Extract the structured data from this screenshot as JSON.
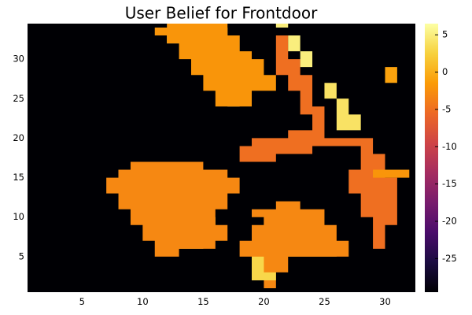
{
  "chart_data": {
    "type": "heatmap",
    "title": "User Belief for Frontdoor",
    "xlabel": "",
    "ylabel": "",
    "x_range": [
      0.5,
      32.5
    ],
    "y_range": [
      0.5,
      34.5
    ],
    "x_ticks": [
      5,
      10,
      15,
      20,
      25,
      30
    ],
    "y_ticks": [
      5,
      10,
      15,
      20,
      25,
      30
    ],
    "colorbar": {
      "min": -29.5,
      "max": 6.5,
      "ticks": [
        5,
        0,
        -5,
        -10,
        -15,
        -20,
        -25
      ],
      "colormap": "inferno",
      "colormap_stops": [
        "#000004",
        "#1b0c41",
        "#4a0c6b",
        "#781c6d",
        "#a52c60",
        "#cf4446",
        "#ed6925",
        "#fb9b06",
        "#f7d13d",
        "#fcffa4"
      ]
    },
    "grid": false,
    "background_value": -29.5,
    "regions": [
      {
        "name": "upper-left blob",
        "value": 5,
        "rings": [
          [
            [
              12,
              33
            ],
            [
              12,
              34
            ],
            [
              17,
              34
            ],
            [
              17,
              33
            ],
            [
              18,
              33
            ],
            [
              18,
              31
            ],
            [
              17,
              31
            ],
            [
              17,
              29
            ],
            [
              16,
              29
            ],
            [
              16,
              27
            ],
            [
              17,
              27
            ],
            [
              17,
              25
            ],
            [
              18,
              25
            ],
            [
              18,
              24
            ],
            [
              17,
              24
            ],
            [
              17,
              26
            ],
            [
              16,
              26
            ],
            [
              16,
              28
            ],
            [
              15,
              28
            ],
            [
              15,
              30
            ],
            [
              14,
              30
            ],
            [
              14,
              32
            ],
            [
              12,
              32
            ]
          ]
        ]
      },
      {
        "name": "upper-left blob warm",
        "value": -2,
        "rings": [
          [
            [
              11,
              33
            ],
            [
              11,
              34
            ],
            [
              12,
              34
            ],
            [
              12,
              32
            ],
            [
              13,
              32
            ],
            [
              13,
              30
            ],
            [
              14,
              30
            ],
            [
              14,
              28
            ],
            [
              15,
              28
            ],
            [
              15,
              26
            ],
            [
              16,
              26
            ],
            [
              16,
              24
            ],
            [
              19,
              24
            ],
            [
              19,
              26
            ],
            [
              21,
              26
            ],
            [
              21,
              28
            ],
            [
              20,
              28
            ],
            [
              20,
              30
            ],
            [
              19,
              30
            ],
            [
              19,
              31
            ],
            [
              18,
              31
            ],
            [
              18,
              33
            ],
            [
              17,
              33
            ],
            [
              17,
              35
            ],
            [
              12,
              35
            ],
            [
              12,
              33
            ]
          ]
        ]
      },
      {
        "name": "lower-left blob",
        "value": 4,
        "rings": [
          [
            [
              8,
              16
            ],
            [
              15,
              16
            ],
            [
              15,
              15
            ],
            [
              17,
              15
            ],
            [
              17,
              14
            ],
            [
              16,
              14
            ],
            [
              16,
              12
            ],
            [
              15,
              12
            ],
            [
              15,
              10
            ],
            [
              16,
              10
            ],
            [
              16,
              8
            ],
            [
              15,
              8
            ],
            [
              15,
              6
            ],
            [
              13,
              6
            ],
            [
              13,
              8
            ],
            [
              12,
              8
            ],
            [
              12,
              10
            ],
            [
              11,
              10
            ],
            [
              11,
              12
            ],
            [
              9,
              12
            ],
            [
              9,
              14
            ],
            [
              8,
              14
            ]
          ]
        ]
      },
      {
        "name": "lower-left blob warm",
        "value": -3,
        "rings": [
          [
            [
              8,
              15
            ],
            [
              8,
              16
            ],
            [
              9,
              16
            ],
            [
              9,
              17
            ],
            [
              15,
              17
            ],
            [
              15,
              16
            ],
            [
              17,
              16
            ],
            [
              17,
              15
            ],
            [
              18,
              15
            ],
            [
              18,
              13
            ],
            [
              17,
              13
            ],
            [
              17,
              11
            ],
            [
              16,
              11
            ],
            [
              16,
              9
            ],
            [
              17,
              9
            ],
            [
              17,
              7
            ],
            [
              16,
              7
            ],
            [
              16,
              6
            ],
            [
              13,
              6
            ],
            [
              13,
              5
            ],
            [
              11,
              5
            ],
            [
              11,
              7
            ],
            [
              10,
              7
            ],
            [
              10,
              9
            ],
            [
              9,
              9
            ],
            [
              9,
              11
            ],
            [
              8,
              11
            ],
            [
              8,
              13
            ],
            [
              7,
              13
            ],
            [
              7,
              15
            ]
          ]
        ]
      },
      {
        "name": "lower-right blob",
        "value": 3,
        "rings": [
          [
            [
              20,
              10
            ],
            [
              24,
              10
            ],
            [
              24,
              9
            ],
            [
              25,
              9
            ],
            [
              25,
              7
            ],
            [
              26,
              7
            ],
            [
              26,
              5
            ],
            [
              22,
              5
            ],
            [
              22,
              6
            ],
            [
              21,
              6
            ],
            [
              21,
              8
            ],
            [
              20,
              8
            ]
          ]
        ]
      },
      {
        "name": "lower-right blob warm",
        "value": -3,
        "rings": [
          [
            [
              19,
              11
            ],
            [
              19,
              10
            ],
            [
              20,
              10
            ],
            [
              20,
              9
            ],
            [
              19,
              9
            ],
            [
              19,
              7
            ],
            [
              18,
              7
            ],
            [
              18,
              5
            ],
            [
              19,
              5
            ],
            [
              19,
              2
            ],
            [
              20,
              2
            ],
            [
              20,
              1
            ],
            [
              21,
              1
            ],
            [
              21,
              3
            ],
            [
              22,
              3
            ],
            [
              22,
              5
            ],
            [
              27,
              5
            ],
            [
              27,
              7
            ],
            [
              26,
              7
            ],
            [
              26,
              9
            ],
            [
              25,
              9
            ],
            [
              25,
              11
            ],
            [
              23,
              11
            ],
            [
              23,
              12
            ],
            [
              21,
              12
            ],
            [
              21,
              11
            ]
          ]
        ]
      },
      {
        "name": "right arm",
        "value": 4,
        "rings": [
          [
            [
              25,
              25
            ],
            [
              26,
              25
            ],
            [
              26,
              21
            ],
            [
              28,
              21
            ],
            [
              28,
              23
            ],
            [
              27,
              23
            ],
            [
              27,
              25
            ],
            [
              26,
              25
            ],
            [
              26,
              27
            ],
            [
              25,
              27
            ]
          ]
        ]
      },
      {
        "name": "right arm warm",
        "value": -5,
        "rings": [
          [
            [
              24,
              28
            ],
            [
              24,
              24
            ],
            [
              25,
              24
            ],
            [
              25,
              20
            ],
            [
              29,
              20
            ],
            [
              29,
              18
            ],
            [
              30,
              18
            ],
            [
              30,
              15
            ],
            [
              31,
              15
            ],
            [
              31,
              9
            ],
            [
              30,
              9
            ],
            [
              30,
              6
            ],
            [
              29,
              6
            ],
            [
              29,
              10
            ],
            [
              28,
              10
            ],
            [
              28,
              13
            ],
            [
              27,
              13
            ],
            [
              27,
              16
            ],
            [
              28,
              16
            ],
            [
              28,
              19
            ],
            [
              24,
              19
            ],
            [
              24,
              18
            ],
            [
              21,
              18
            ],
            [
              21,
              17
            ],
            [
              18,
              17
            ],
            [
              18,
              19
            ],
            [
              19,
              19
            ],
            [
              19,
              20
            ],
            [
              22,
              20
            ],
            [
              22,
              21
            ],
            [
              24,
              21
            ],
            [
              24,
              23
            ],
            [
              23,
              23
            ],
            [
              23,
              26
            ],
            [
              22,
              26
            ],
            [
              22,
              28
            ],
            [
              21,
              28
            ],
            [
              21,
              33
            ],
            [
              22,
              33
            ],
            [
              22,
              30
            ],
            [
              23,
              30
            ],
            [
              23,
              28
            ]
          ]
        ]
      },
      {
        "name": "right arm top",
        "value": 5,
        "rings": [
          [
            [
              21,
              34
            ],
            [
              22,
              34
            ],
            [
              22,
              31
            ],
            [
              23,
              31
            ],
            [
              23,
              29
            ],
            [
              24,
              29
            ],
            [
              24,
              31
            ],
            [
              23,
              31
            ],
            [
              23,
              33
            ],
            [
              22,
              33
            ],
            [
              22,
              35
            ],
            [
              21,
              35
            ]
          ]
        ]
      },
      {
        "name": "far right spot",
        "value": -1,
        "rings": [
          [
            [
              30,
              27
            ],
            [
              30,
              29
            ],
            [
              31,
              29
            ],
            [
              31,
              27
            ]
          ]
        ]
      },
      {
        "name": "far right bar",
        "value": -2,
        "rings": [
          [
            [
              29,
              16
            ],
            [
              32,
              16
            ],
            [
              32,
              15
            ],
            [
              29,
              15
            ]
          ]
        ]
      },
      {
        "name": "bottom stem",
        "value": 3,
        "rings": [
          [
            [
              19,
              2
            ],
            [
              19,
              5
            ],
            [
              20,
              5
            ],
            [
              20,
              3
            ],
            [
              21,
              3
            ],
            [
              21,
              2
            ]
          ]
        ]
      }
    ]
  }
}
